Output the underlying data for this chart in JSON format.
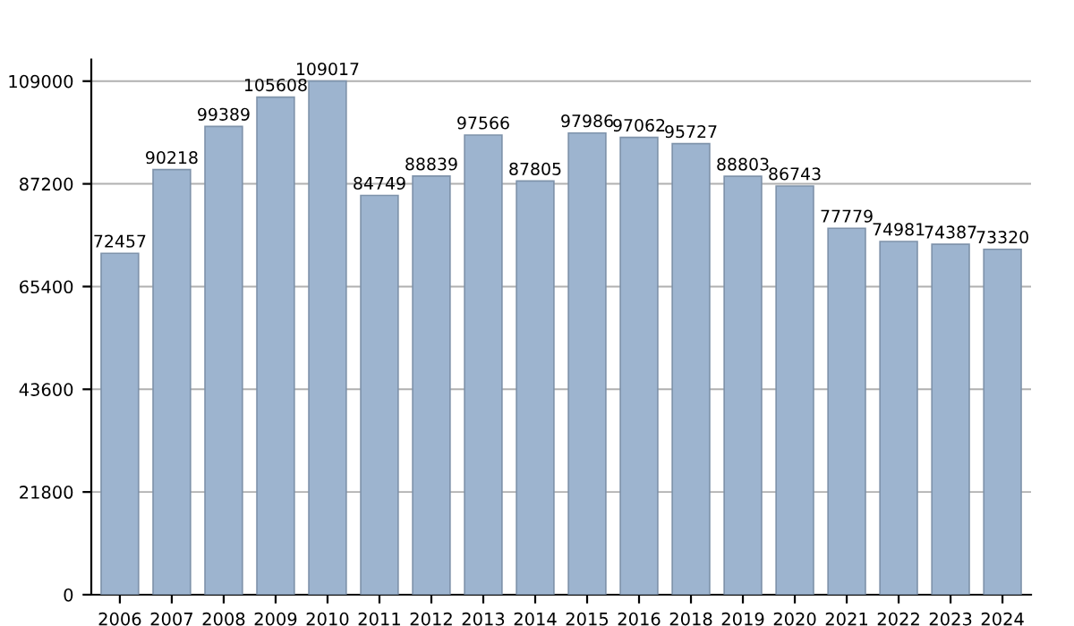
{
  "chart_data": {
    "type": "bar",
    "categories": [
      "2006",
      "2007",
      "2008",
      "2009",
      "2010",
      "2011",
      "2012",
      "2013",
      "2014",
      "2015",
      "2016",
      "2018",
      "2019",
      "2020",
      "2021",
      "2022",
      "2023",
      "2024"
    ],
    "values": [
      72457,
      90218,
      99389,
      105608,
      109017,
      84749,
      88839,
      97566,
      87805,
      97986,
      97062,
      95727,
      88803,
      86743,
      77779,
      74981,
      74387,
      73320
    ],
    "color": "#9db4cf",
    "ylim": [
      0,
      113600
    ],
    "yticks": [
      0,
      21800,
      43600,
      65400,
      87200,
      109000
    ],
    "grid": "y",
    "data_labels": true
  }
}
